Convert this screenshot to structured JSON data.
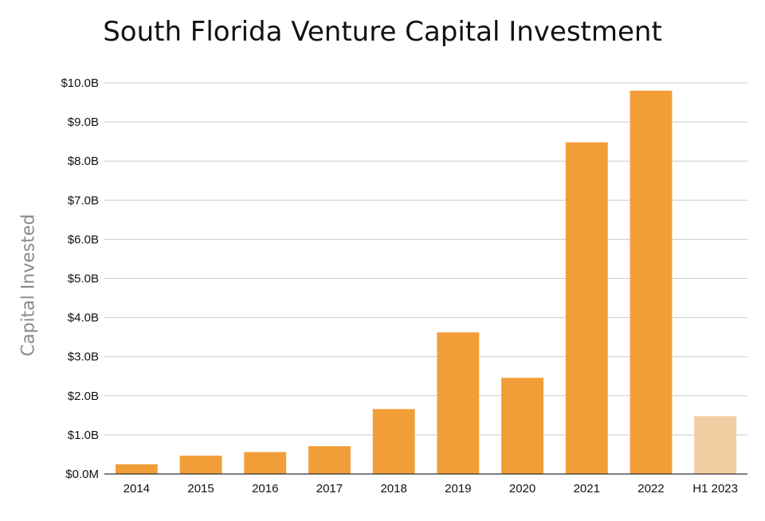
{
  "chart_data": {
    "type": "bar",
    "title": "South Florida Venture Capital Investment",
    "xlabel": "",
    "ylabel": "Capital Invested",
    "categories": [
      "2014",
      "2015",
      "2016",
      "2017",
      "2018",
      "2019",
      "2020",
      "2021",
      "2022",
      "H1 2023"
    ],
    "values": [
      0.25,
      0.47,
      0.56,
      0.71,
      1.66,
      3.62,
      2.46,
      8.48,
      9.8,
      1.48
    ],
    "unit": "billion USD",
    "ylim": [
      0,
      10
    ],
    "yticks": [
      0,
      1,
      2,
      3,
      4,
      5,
      6,
      7,
      8,
      9,
      10
    ],
    "ytick_labels": [
      "$0.0M",
      "$1.0B",
      "$2.0B",
      "$3.0B",
      "$4.0B",
      "$5.0B",
      "$6.0B",
      "$7.0B",
      "$8.0B",
      "$9.0B",
      "$10.0B"
    ],
    "grid": true,
    "legend": "none",
    "colors": {
      "bar": "#f29e38",
      "bar_partial_year": "#f3cda2",
      "grid": "#cccccc",
      "axis": "#333333"
    },
    "highlighted_categories": [
      "H1 2023"
    ]
  }
}
